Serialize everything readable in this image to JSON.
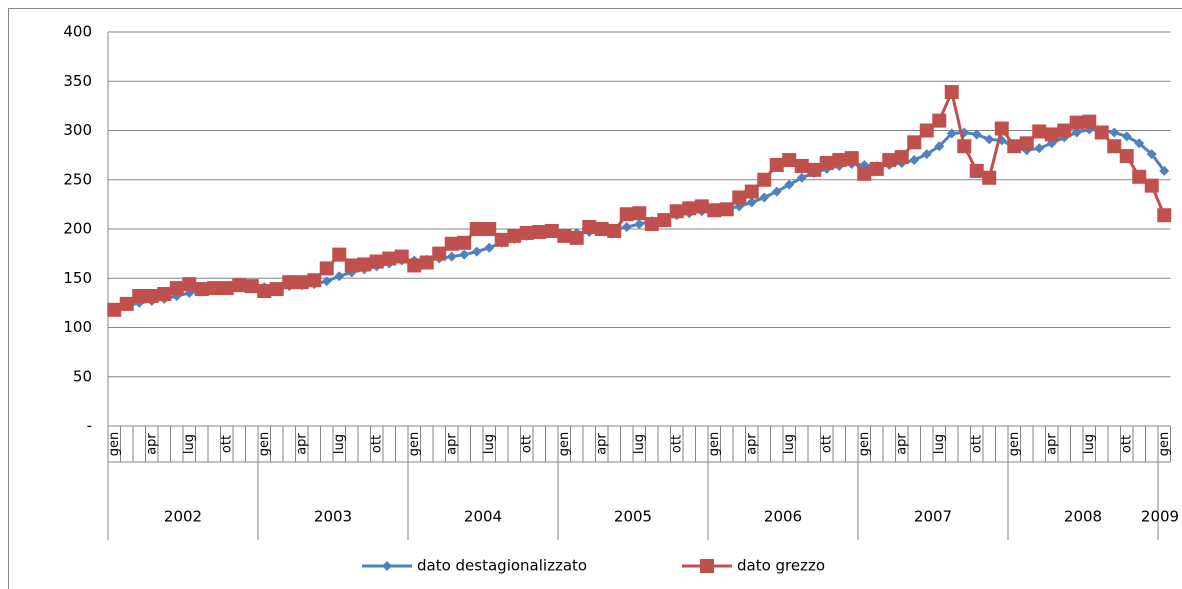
{
  "chart_data": {
    "type": "line",
    "categories": [
      "gen",
      null,
      null,
      "apr",
      null,
      null,
      "lug",
      null,
      null,
      "ott",
      null,
      null,
      "gen",
      null,
      null,
      "apr",
      null,
      null,
      "lug",
      null,
      null,
      "ott",
      null,
      null,
      "gen",
      null,
      null,
      "apr",
      null,
      null,
      "lug",
      null,
      null,
      "ott",
      null,
      null,
      "gen",
      null,
      null,
      "apr",
      null,
      null,
      "lug",
      null,
      null,
      "ott",
      null,
      null,
      "gen",
      null,
      null,
      "apr",
      null,
      null,
      "lug",
      null,
      null,
      "ott",
      null,
      null,
      "gen",
      null,
      null,
      "apr",
      null,
      null,
      "lug",
      null,
      null,
      "ott",
      null,
      null,
      "gen",
      null,
      null,
      "apr",
      null,
      null,
      "lug",
      null,
      null,
      "ott",
      null,
      null,
      "gen"
    ],
    "year_groups": [
      "2002",
      "2003",
      "2004",
      "2005",
      "2006",
      "2007",
      "2008",
      "2009"
    ],
    "series": [
      {
        "name": "dato destagionalizzato",
        "color": "#4f81bd",
        "marker": "diamond",
        "values": [
          118,
          122,
          125,
          127,
          129,
          132,
          135,
          137,
          139,
          140,
          141,
          142,
          141,
          141,
          142,
          143,
          144,
          147,
          152,
          156,
          159,
          162,
          165,
          168,
          168,
          169,
          170,
          172,
          174,
          177,
          181,
          186,
          190,
          193,
          195,
          196,
          196,
          196,
          197,
          198,
          199,
          202,
          205,
          208,
          211,
          214,
          216,
          218,
          218,
          220,
          223,
          227,
          232,
          238,
          245,
          252,
          257,
          261,
          264,
          266,
          265,
          264,
          265,
          267,
          270,
          276,
          284,
          297,
          298,
          296,
          291,
          290,
          283,
          280,
          282,
          287,
          293,
          298,
          301,
          300,
          298,
          294,
          287,
          276,
          259
        ]
      },
      {
        "name": "dato grezzo",
        "color": "#c0504d",
        "marker": "square",
        "values": [
          118,
          124,
          132,
          132,
          134,
          140,
          144,
          139,
          140,
          140,
          143,
          142,
          137,
          139,
          146,
          146,
          148,
          160,
          174,
          163,
          164,
          167,
          170,
          172,
          163,
          166,
          175,
          185,
          186,
          200,
          200,
          189,
          193,
          196,
          197,
          198,
          193,
          191,
          202,
          200,
          198,
          215,
          216,
          205,
          209,
          218,
          221,
          223,
          219,
          220,
          232,
          238,
          250,
          265,
          270,
          264,
          260,
          267,
          270,
          272,
          256,
          261,
          270,
          273,
          288,
          300,
          310,
          339,
          284,
          259,
          252,
          302,
          284,
          287,
          299,
          296,
          300,
          308,
          309,
          298,
          284,
          274,
          253,
          244,
          214
        ]
      }
    ],
    "ylim": [
      0,
      400
    ],
    "yticks": [
      {
        "value": 0,
        "label": "-"
      },
      50,
      100,
      150,
      200,
      250,
      300,
      350,
      400
    ],
    "grid": true,
    "legend": "bottom"
  }
}
